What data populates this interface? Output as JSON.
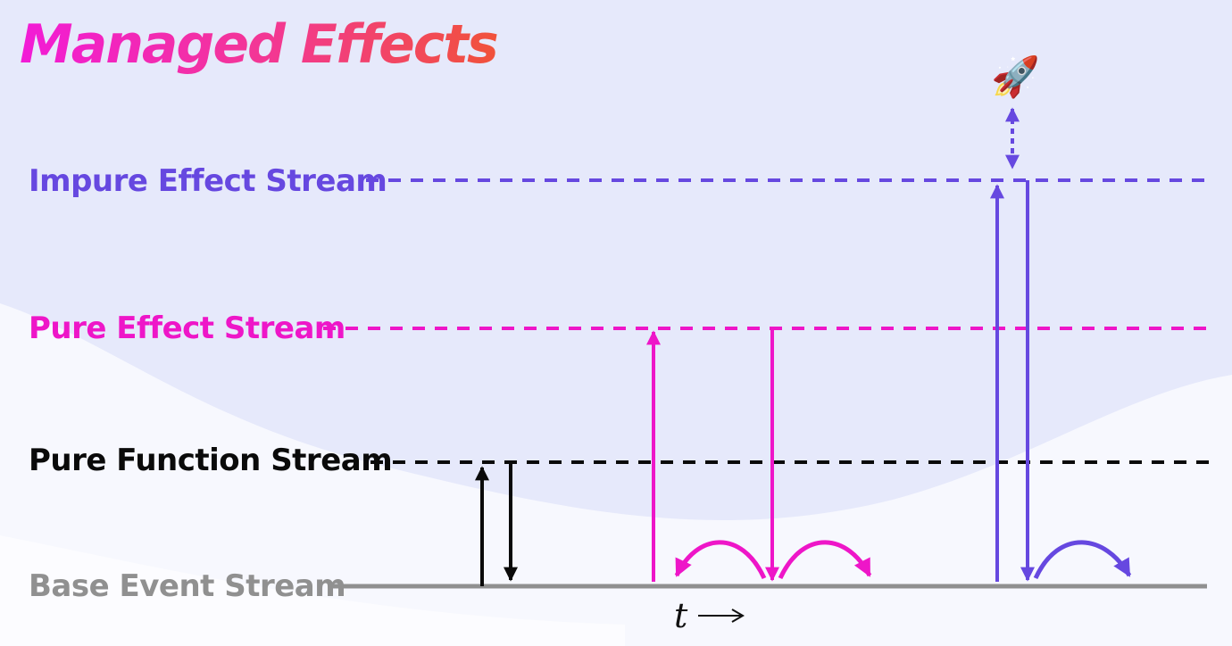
{
  "title": "Managed Effects",
  "streams": {
    "impure": "Impure Effect Stream",
    "pure_effect": "Pure Effect Stream",
    "pure_function": "Pure Function Stream",
    "base": "Base Event Stream"
  },
  "time_axis_label": "t",
  "icons": {
    "rocket": "rocket-icon",
    "time_arrow": "right-arrow-icon"
  },
  "colors": {
    "title_gradient": [
      "#f21bd7",
      "#f3398f",
      "#f1523a"
    ],
    "impure": "#6648e0",
    "pure_effect": "#ee16c8",
    "pure_function": "#0a0a0a",
    "base": "#909090"
  }
}
